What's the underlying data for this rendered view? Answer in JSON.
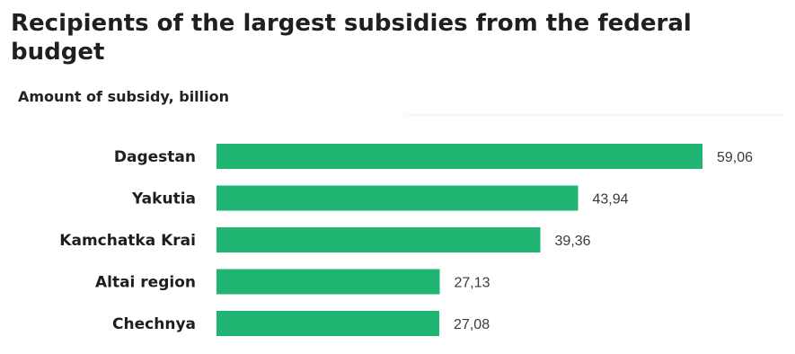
{
  "chart_data": {
    "type": "bar",
    "orientation": "horizontal",
    "title": "Recipients of the largest subsidies from the federal budget",
    "subtitle": "Amount of subsidy, billion",
    "categories": [
      "Dagestan",
      "Yakutia",
      "Kamchatka Krai",
      "Altai region",
      "Chechnya"
    ],
    "values": [
      59.06,
      43.94,
      39.36,
      27.13,
      27.08
    ],
    "value_labels": [
      "59,06",
      "43,94",
      "39,36",
      "27,13",
      "27,08"
    ],
    "bar_color": "#21b573",
    "grid": false,
    "legend": "none"
  }
}
